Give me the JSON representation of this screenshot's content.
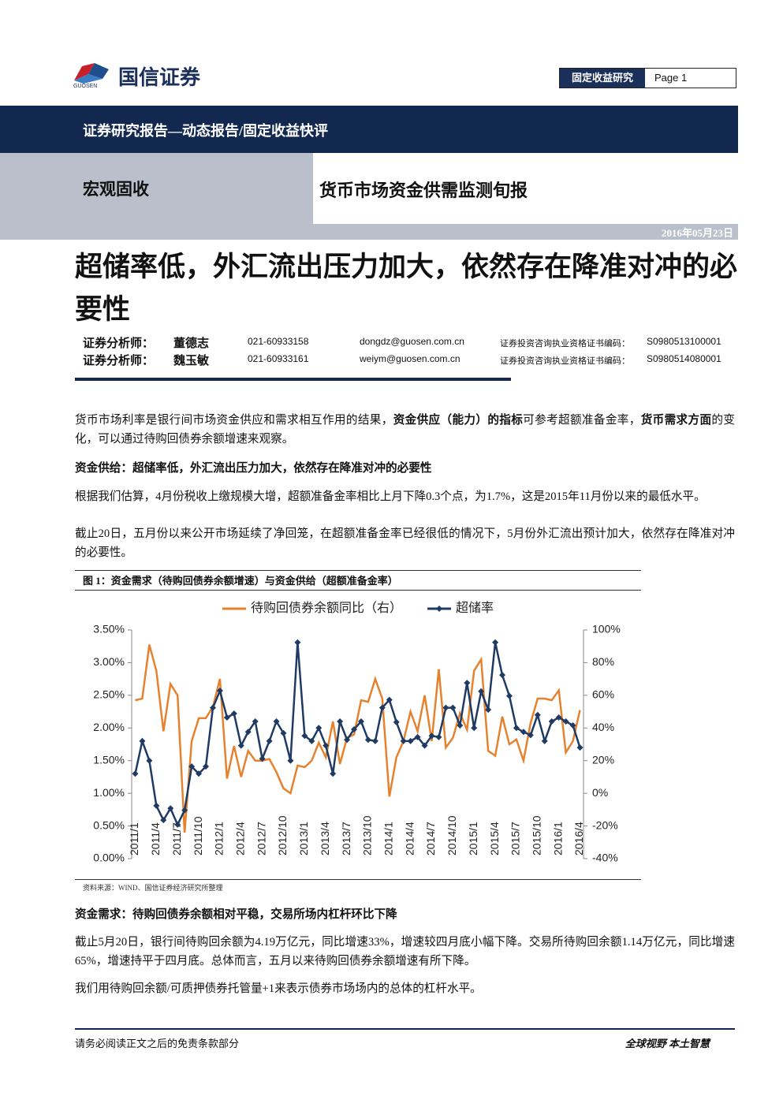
{
  "header": {
    "logo_text": "国信证券",
    "logo_sub": "GUOSEN",
    "section": "固定收益研究",
    "page": "Page 1"
  },
  "banner": "证券研究报告—动态报告/固定收益快评",
  "category": "宏观固收",
  "report_title": "货币市场资金供需监测旬报",
  "date": "2016年05月23日",
  "title": "超储率低，外汇流出压力加大，依然存在降准对冲的必要性",
  "analysts": [
    {
      "role": "证券分析师：",
      "name": "董德志",
      "phone": "021-60933158",
      "email": "dongdz@guosen.com.cn",
      "cert_label": "证券投资咨询执业资格证书编码：",
      "cert": "S0980513100001"
    },
    {
      "role": "证券分析师：",
      "name": "魏玉敏",
      "phone": "021-60933161",
      "email": "weiym@guosen.com.cn",
      "cert_label": "证券投资咨询执业资格证书编码：",
      "cert": "S0980514080001"
    }
  ],
  "body_before": [
    {
      "runs": [
        {
          "text": "货币市场利率是银行间市场资金供应和需求相互作用的结果，"
        },
        {
          "text": "资金供应（能力）的指标",
          "bold": true
        },
        {
          "text": "可参考超额准备金率，"
        },
        {
          "text": "货币需求方面",
          "bold": true
        },
        {
          "text": "的变化，可以通过待购回债券余额增速来观察。"
        }
      ]
    },
    {
      "heading": "资金供给：超储率低，外汇流出压力加大，依然存在降准对冲的必要性"
    },
    {
      "runs": [
        {
          "text": "根据我们估算，4月份税收上缴规模大增，超额准备金率相比上月下降0.3个点，为1.7%，这是2015年11月份以来的最低水平。"
        }
      ]
    },
    {
      "runs": [
        {
          "text": "截止20日，五月份以来公开市场延续了净回笼，在超额准备金率已经很低的情况下，5月份外汇流出预计加大，依然存在降准对冲的必要性。"
        }
      ]
    }
  ],
  "figure_title": "图 1：资金需求（待购回债券余额增速）与资金供给（超额准备金率）",
  "chart_data": {
    "type": "line",
    "categories": [
      "2011/1",
      null,
      null,
      "2011/4",
      null,
      null,
      "2011/7",
      null,
      null,
      "2011/10",
      null,
      null,
      "2012/1",
      null,
      null,
      "2012/4",
      null,
      null,
      "2012/7",
      null,
      null,
      "2012/10",
      null,
      null,
      "2013/1",
      null,
      null,
      "2013/4",
      null,
      null,
      "2013/7",
      null,
      null,
      "2013/10",
      null,
      null,
      "2014/1",
      null,
      null,
      "2014/4",
      null,
      null,
      "2014/7",
      null,
      null,
      "2014/10",
      null,
      null,
      "2015/1",
      null,
      null,
      "2015/4",
      null,
      null,
      "2015/7",
      null,
      null,
      "2015/10",
      null,
      null,
      "2016/1",
      null,
      null,
      "2016/4"
    ],
    "series": [
      {
        "name": "待购回债券余额同比（右）",
        "color": "#e6822e",
        "axis": "y2",
        "marker": false,
        "values": [
          57,
          58,
          91,
          75,
          38,
          67,
          60,
          -24,
          32,
          46,
          46,
          53,
          70,
          9,
          29,
          10,
          26,
          20,
          20,
          21,
          13,
          3,
          0,
          17,
          16,
          20,
          31,
          22,
          44,
          18,
          34,
          36,
          57,
          56,
          70,
          58,
          -2,
          22,
          32,
          50,
          38,
          60,
          32,
          76,
          28,
          34,
          49,
          39,
          75,
          82,
          26,
          23,
          47,
          30,
          33,
          20,
          43,
          58,
          58,
          57,
          63,
          25,
          32,
          51
        ]
      },
      {
        "name": "超储率",
        "color": "#1f3b63",
        "marker": true,
        "values": [
          1.3,
          1.8,
          1.5,
          0.81,
          0.59,
          0.77,
          0.52,
          0.74,
          1.41,
          1.3,
          1.41,
          2.31,
          2.57,
          2.16,
          2.22,
          1.73,
          1.94,
          2.1,
          1.53,
          1.8,
          2.1,
          1.92,
          1.5,
          3.31,
          1.88,
          1.8,
          2.0,
          1.73,
          1.3,
          2.1,
          1.82,
          1.98,
          2.1,
          1.82,
          1.8,
          2.31,
          2.43,
          2.09,
          1.8,
          1.8,
          1.86,
          1.73,
          1.88,
          1.86,
          2.31,
          2.31,
          2.04,
          2.69,
          2.0,
          2.56,
          2.28,
          3.31,
          2.81,
          2.49,
          2.0,
          1.94,
          1.89,
          2.2,
          1.8,
          2.1,
          2.16,
          2.1,
          2.04,
          1.7
        ]
      }
    ],
    "ylim": [
      0,
      3.5
    ],
    "yticks": [
      {
        "value": 0,
        "label": "0.00%"
      },
      {
        "value": 0.5,
        "label": "0.50%"
      },
      {
        "value": 1,
        "label": "1.00%"
      },
      {
        "value": 1.5,
        "label": "1.50%"
      },
      {
        "value": 2,
        "label": "2.00%"
      },
      {
        "value": 2.5,
        "label": "2.50%"
      },
      {
        "value": 3,
        "label": "3.00%"
      },
      {
        "value": 3.5,
        "label": "3.50%"
      }
    ],
    "y2lim": [
      -40,
      100
    ],
    "y2ticks": [
      {
        "value": -40,
        "label": "-40%"
      },
      {
        "value": -20,
        "label": "-20%"
      },
      {
        "value": 0,
        "label": "0%"
      },
      {
        "value": 20,
        "label": "20%"
      },
      {
        "value": 40,
        "label": "40%"
      },
      {
        "value": 60,
        "label": "60%"
      },
      {
        "value": 80,
        "label": "80%"
      },
      {
        "value": 100,
        "label": "100%"
      }
    ],
    "grid": false,
    "legend": "top"
  },
  "source": "资料来源：WIND、国信证券经济研究所整理",
  "body_after": [
    {
      "heading": "资金需求：待购回债券余额相对平稳，交易所场内杠杆环比下降"
    },
    {
      "runs": [
        {
          "text": "截止5月20日，银行间待购回余额为4.19万亿元，同比增速33%，增速较四月底小幅下降。交易所待购回余额1.14万亿元，同比增速65%，增速持平于四月底。总体而言，五月以来待购回债券余额增速有所下降。"
        }
      ]
    },
    {
      "runs": [
        {
          "text": "我们用待购回余额/可质押债券托管量+1来表示债券市场场内的总体的杠杆水平。"
        }
      ]
    }
  ],
  "footer": {
    "left": "请务必阅读正文之后的免责条款部分",
    "right": "全球视野 本土智慧"
  }
}
